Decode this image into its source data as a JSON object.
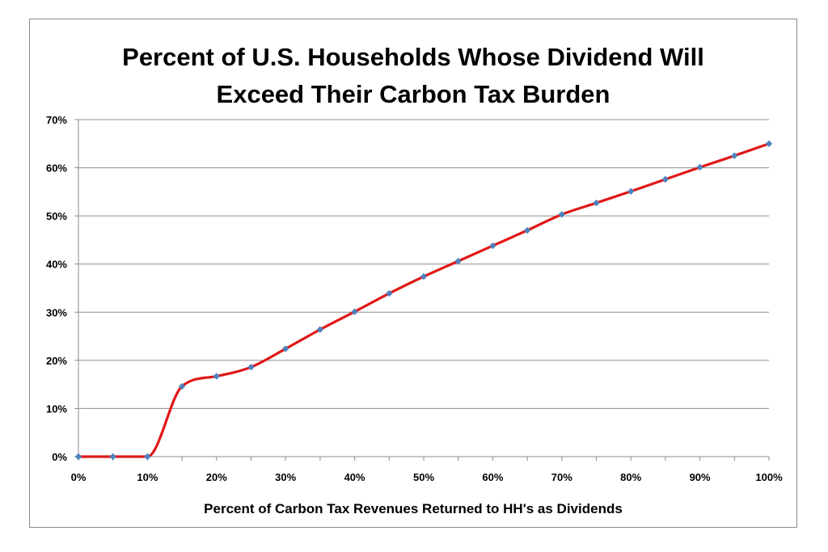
{
  "chart_data": {
    "type": "line",
    "title_lines": [
      "Percent of U.S. Households Whose Dividend Will",
      "Exceed Their Carbon Tax Burden"
    ],
    "xlabel": "Percent of Carbon Tax Revenues Returned to HH's as Dividends",
    "ylabel": "",
    "x_tick_labels": [
      "0%",
      "10%",
      "20%",
      "30%",
      "40%",
      "50%",
      "60%",
      "70%",
      "80%",
      "90%",
      "100%"
    ],
    "y_tick_labels": [
      "0%",
      "10%",
      "20%",
      "30%",
      "40%",
      "50%",
      "60%",
      "70%"
    ],
    "xlim": [
      0,
      100
    ],
    "ylim": [
      0,
      70
    ],
    "grid": "horizontal",
    "legend": "none",
    "series": [
      {
        "x": [
          0,
          5,
          10,
          15,
          20,
          25,
          30,
          35,
          40,
          45,
          50,
          55,
          60,
          65,
          70,
          75,
          80,
          85,
          90,
          95,
          100
        ],
        "values": [
          0,
          0,
          0,
          14.6,
          16.7,
          18.6,
          22.4,
          26.4,
          30.1,
          33.9,
          37.4,
          40.6,
          43.8,
          47.0,
          50.3,
          52.7,
          55.1,
          57.6,
          60.1,
          62.5,
          65.0
        ],
        "line_color": "#e01818",
        "marker_color": "#4f81bd"
      }
    ]
  }
}
